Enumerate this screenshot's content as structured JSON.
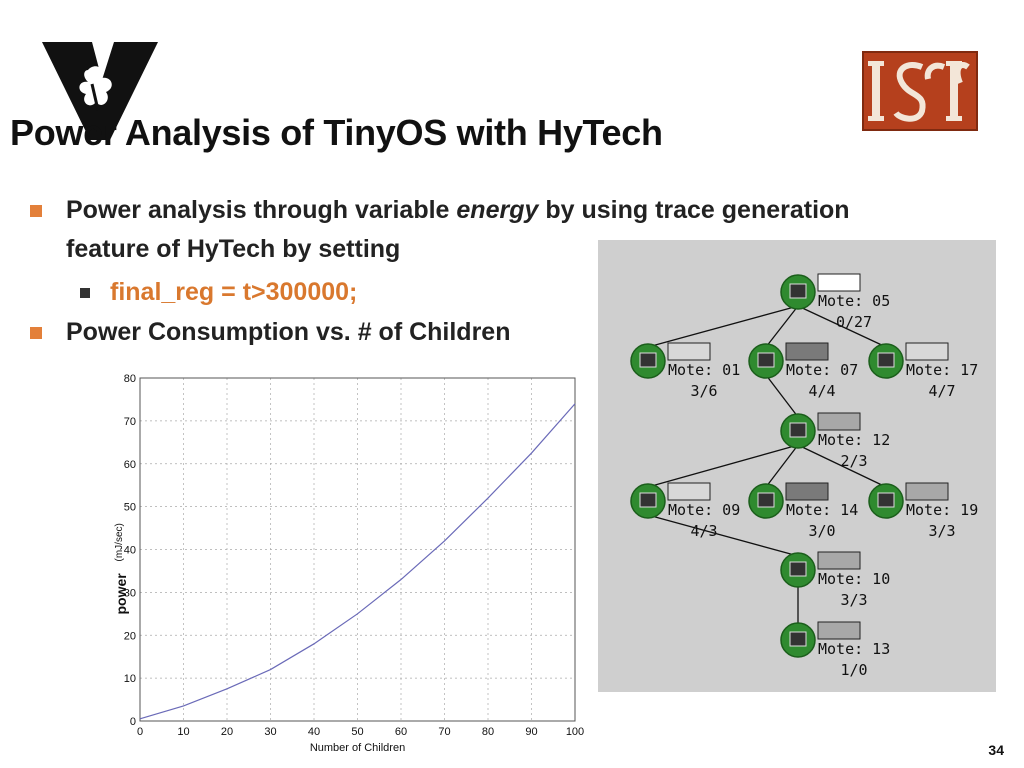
{
  "slide": {
    "title": "Power Analysis of TinyOS with HyTech",
    "page_number": "34"
  },
  "logos": {
    "left": "vanderbilt-v-logo",
    "right": "isis-logo",
    "right_text": "ISIS"
  },
  "bullets": [
    {
      "pre": "Power analysis through variable ",
      "italic": "energy",
      "post": " by using trace generation"
    },
    {
      "text": "feature of HyTech by setting"
    },
    {
      "text": "final_reg = t>300000;"
    },
    {
      "text": "Power Consumption vs. # of Children"
    }
  ],
  "chart_data": {
    "type": "line",
    "xlabel": "Number of Children",
    "ylabel_main": "power",
    "ylabel_unit": "(mJ/sec)",
    "xlim": [
      0,
      100
    ],
    "ylim": [
      0,
      80
    ],
    "xticks": [
      0,
      10,
      20,
      30,
      40,
      50,
      60,
      70,
      80,
      90,
      100
    ],
    "yticks": [
      0,
      10,
      20,
      30,
      40,
      50,
      60,
      70,
      80
    ],
    "grid": true,
    "series": [
      {
        "color": "#6a6ab8",
        "x": [
          0,
          10,
          20,
          30,
          40,
          50,
          60,
          70,
          80,
          90,
          100
        ],
        "y": [
          0.5,
          3.5,
          7.5,
          12,
          18,
          25,
          33,
          42,
          52,
          62.5,
          74
        ]
      }
    ]
  },
  "tree": {
    "motes": [
      {
        "id": "m05",
        "label": "Mote: 05",
        "ratio": "0/27",
        "box": "white"
      },
      {
        "id": "m01",
        "label": "Mote: 01",
        "ratio": "3/6",
        "box": "light"
      },
      {
        "id": "m07",
        "label": "Mote: 07",
        "ratio": "4/4",
        "box": "dark"
      },
      {
        "id": "m17",
        "label": "Mote: 17",
        "ratio": "4/7",
        "box": "light"
      },
      {
        "id": "m12",
        "label": "Mote: 12",
        "ratio": "2/3",
        "box": "mid"
      },
      {
        "id": "m09",
        "label": "Mote: 09",
        "ratio": "4/3",
        "box": "light"
      },
      {
        "id": "m14",
        "label": "Mote: 14",
        "ratio": "3/0",
        "box": "dark"
      },
      {
        "id": "m19",
        "label": "Mote: 19",
        "ratio": "3/3",
        "box": "mid"
      },
      {
        "id": "m10",
        "label": "Mote: 10",
        "ratio": "3/3",
        "box": "mid"
      },
      {
        "id": "m13",
        "label": "Mote: 13",
        "ratio": "1/0",
        "box": "mid"
      }
    ],
    "edges": [
      [
        "m05",
        "m01"
      ],
      [
        "m05",
        "m07"
      ],
      [
        "m05",
        "m17"
      ],
      [
        "m07",
        "m12"
      ],
      [
        "m12",
        "m09"
      ],
      [
        "m12",
        "m14"
      ],
      [
        "m12",
        "m19"
      ],
      [
        "m09",
        "m10"
      ],
      [
        "m10",
        "m13"
      ]
    ],
    "colors": {
      "white": "#ffffff",
      "light": "#d8d8d8",
      "mid": "#a8a8a8",
      "dark": "#7a7a7a"
    }
  }
}
